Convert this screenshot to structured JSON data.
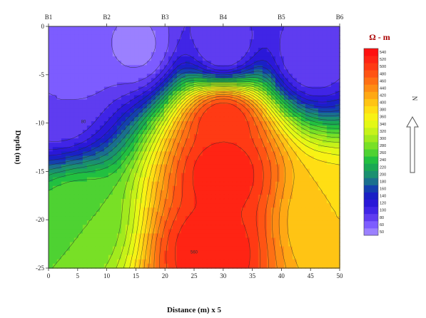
{
  "chart_data": {
    "type": "heatmap",
    "subtype": "filled-contour",
    "title": "",
    "xlabel": "Distance (m) x 5",
    "ylabel": "Depth (m)",
    "xlim": [
      0,
      50
    ],
    "ylim": [
      -25,
      0
    ],
    "x_ticks": [
      0,
      5,
      10,
      15,
      20,
      25,
      30,
      35,
      40,
      45,
      50
    ],
    "y_ticks": [
      0,
      -5,
      -10,
      -15,
      -20,
      -25
    ],
    "boreholes": [
      {
        "label": "B1",
        "x": 0
      },
      {
        "label": "B2",
        "x": 10
      },
      {
        "label": "B3",
        "x": 20
      },
      {
        "label": "B4",
        "x": 30
      },
      {
        "label": "B5",
        "x": 40
      },
      {
        "label": "B6",
        "x": 50
      }
    ],
    "colorbar": {
      "title": "Ω - m",
      "levels": [
        50,
        60,
        80,
        100,
        120,
        140,
        160,
        180,
        200,
        220,
        240,
        260,
        280,
        300,
        320,
        340,
        360,
        380,
        400,
        420,
        440,
        460,
        480,
        500,
        520,
        540
      ],
      "colors": [
        "#9b80ff",
        "#7d5cff",
        "#5f3cf0",
        "#4025e6",
        "#2a18d8",
        "#1a20c6",
        "#1440ae",
        "#1a6f8e",
        "#1a9070",
        "#1aa853",
        "#22c040",
        "#4ed232",
        "#78e026",
        "#a2ea1e",
        "#c6f219",
        "#e3f815",
        "#f8f214",
        "#ffde14",
        "#ffc414",
        "#ffa814",
        "#ff8c14",
        "#ff7014",
        "#ff5414",
        "#ff3a14",
        "#ff2414",
        "#ff1010"
      ]
    },
    "field_points": [
      {
        "x": 5,
        "y": -3,
        "value": 60
      },
      {
        "x": 15,
        "y": -2,
        "value": 55
      },
      {
        "x": 30,
        "y": -2,
        "value": 80
      },
      {
        "x": 45,
        "y": -3,
        "value": 80
      },
      {
        "x": 2,
        "y": -8,
        "value": 80
      },
      {
        "x": 30,
        "y": -10,
        "value": 520
      },
      {
        "x": 30,
        "y": -15,
        "value": 540
      },
      {
        "x": 28,
        "y": -23,
        "value": 540
      },
      {
        "x": 5,
        "y": -20,
        "value": 280
      },
      {
        "x": 48,
        "y": -20,
        "value": 400
      }
    ],
    "contour_labels": [
      {
        "x": 6,
        "y": -10,
        "text": "80"
      },
      {
        "x": 25,
        "y": -23.5,
        "text": "560"
      }
    ],
    "north_arrow": "N"
  }
}
